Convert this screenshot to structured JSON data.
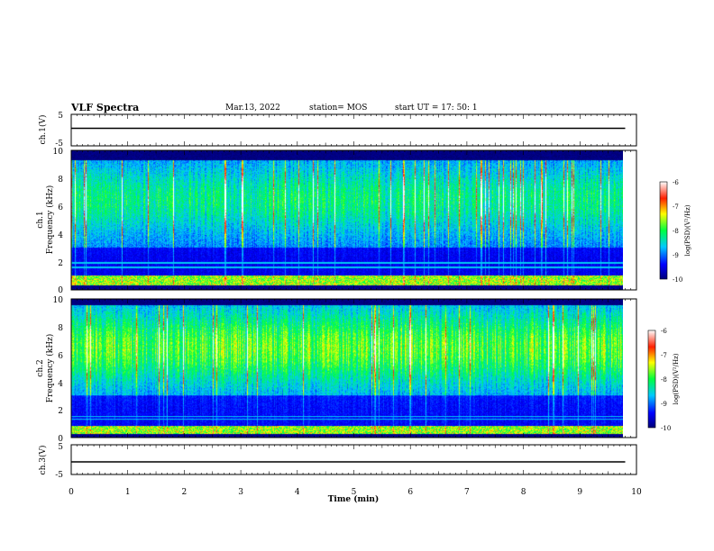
{
  "header": {
    "title": "VLF Spectra",
    "date": "Mar.13, 2022",
    "station": "station= MOS",
    "start": "start  UT =   17: 50: 1"
  },
  "chart_data": [
    {
      "type": "line",
      "name": "ch1-voltage",
      "ylabel": "ch.1(V)",
      "ylim": [
        -5,
        5
      ],
      "yticks": [
        "5",
        "-5"
      ],
      "x": [
        0,
        1,
        2,
        3,
        4,
        5,
        6,
        7,
        8,
        9,
        9.8
      ],
      "values": [
        0,
        0,
        0,
        0,
        0,
        0,
        0,
        0,
        0,
        0,
        0
      ]
    },
    {
      "type": "heatmap",
      "name": "ch1-spectrogram",
      "ylabel": "ch.1",
      "ylabel2": "Frequency (kHz)",
      "ylim": [
        0,
        10
      ],
      "xlim": [
        0,
        9.8
      ],
      "yticks": [
        "0",
        "2",
        "4",
        "6",
        "8",
        "10"
      ],
      "profile": {
        "band_lo": [
          0.3,
          1.0
        ],
        "dark_hi": [
          9.3,
          10
        ],
        "line_khz": [
          1.9,
          1.6
        ],
        "strength": 0.42
      },
      "colorbar": {
        "label": "log(PSD)(V²/Hz)",
        "range": [
          -10,
          -6
        ],
        "ticks": [
          "-6",
          "-7",
          "-8",
          "-9",
          "-10"
        ]
      }
    },
    {
      "type": "heatmap",
      "name": "ch2-spectrogram",
      "ylabel": "ch.2",
      "ylabel2": "Frequency (kHz)",
      "ylim": [
        0,
        10
      ],
      "xlim": [
        0,
        9.8
      ],
      "yticks": [
        "0",
        "2",
        "4",
        "6",
        "8",
        "10"
      ],
      "profile": {
        "band_lo": [
          0.2,
          0.8
        ],
        "dark_hi": [
          9.6,
          10
        ],
        "line_khz": [
          1.3,
          1.5
        ],
        "strength": 0.55
      },
      "colorbar": {
        "label": "log(PSD)(V²/Hz)",
        "range": [
          -10,
          -6
        ],
        "ticks": [
          "-6",
          "-7",
          "-8",
          "-9",
          "-10"
        ]
      }
    },
    {
      "type": "line",
      "name": "ch3-voltage",
      "ylabel": "ch.3(V)",
      "ylim": [
        -5,
        5
      ],
      "yticks": [
        "5",
        "-5"
      ],
      "x": [
        0,
        1,
        2,
        3,
        4,
        5,
        6,
        7,
        8,
        9,
        9.8
      ],
      "values": [
        0,
        0,
        0,
        0,
        0,
        0,
        0,
        0,
        0,
        0,
        0
      ]
    }
  ],
  "xaxis": {
    "label": "Time (min)",
    "range": [
      0,
      10
    ],
    "ticks": [
      "0",
      "1",
      "2",
      "3",
      "4",
      "5",
      "6",
      "7",
      "8",
      "9",
      "10"
    ]
  },
  "colors": {
    "background": "#000000",
    "line": "#000000"
  }
}
